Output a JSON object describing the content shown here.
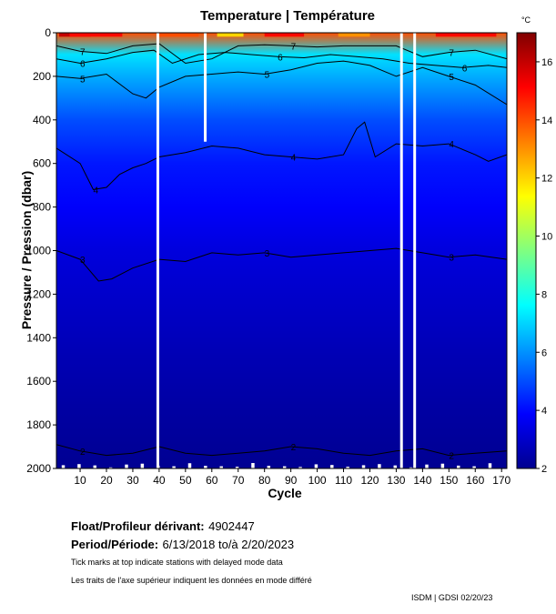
{
  "chart_data": {
    "type": "heatmap",
    "title": "Temperature | Température",
    "xlabel": "Cycle",
    "ylabel": "Pressure / Pression (dbar)",
    "xlim": [
      1,
      172
    ],
    "ylim": [
      2000,
      0
    ],
    "y_inverted": true,
    "xticks": [
      10,
      20,
      30,
      40,
      50,
      60,
      70,
      80,
      90,
      100,
      110,
      120,
      130,
      140,
      150,
      160,
      170
    ],
    "yticks": [
      0,
      200,
      400,
      600,
      800,
      1000,
      1200,
      1400,
      1600,
      1800,
      2000
    ],
    "colorbar": {
      "unit": "°C",
      "min": 2,
      "max": 17,
      "ticks": [
        2,
        4,
        6,
        8,
        10,
        12,
        14,
        16
      ],
      "colors": [
        "#00008f",
        "#0000ff",
        "#0080ff",
        "#00ffff",
        "#80ff80",
        "#ffff00",
        "#ff8000",
        "#ff0000",
        "#800000"
      ]
    },
    "temperature_profile": [
      {
        "pressure": 0,
        "temp": 14
      },
      {
        "pressure": 100,
        "temp": 7.2
      },
      {
        "pressure": 200,
        "temp": 6.4
      },
      {
        "pressure": 400,
        "temp": 5.0
      },
      {
        "pressure": 600,
        "temp": 4.2
      },
      {
        "pressure": 800,
        "temp": 3.8
      },
      {
        "pressure": 1000,
        "temp": 3.3
      },
      {
        "pressure": 1200,
        "temp": 3.0
      },
      {
        "pressure": 1500,
        "temp": 2.6
      },
      {
        "pressure": 1800,
        "temp": 2.25
      },
      {
        "pressure": 2000,
        "temp": 2.05
      }
    ],
    "contours": [
      {
        "label": "7",
        "depths": [
          [
            1,
            60
          ],
          [
            10,
            85
          ],
          [
            20,
            95
          ],
          [
            30,
            60
          ],
          [
            40,
            50
          ],
          [
            50,
            140
          ],
          [
            60,
            120
          ],
          [
            70,
            60
          ],
          [
            80,
            55
          ],
          [
            90,
            60
          ],
          [
            100,
            65
          ],
          [
            110,
            60
          ],
          [
            120,
            60
          ],
          [
            130,
            60
          ],
          [
            140,
            110
          ],
          [
            150,
            90
          ],
          [
            160,
            80
          ],
          [
            172,
            120
          ]
        ]
      },
      {
        "label": "6",
        "depths": [
          [
            1,
            120
          ],
          [
            10,
            140
          ],
          [
            20,
            120
          ],
          [
            30,
            90
          ],
          [
            38,
            80
          ],
          [
            45,
            140
          ],
          [
            55,
            100
          ],
          [
            65,
            90
          ],
          [
            75,
            100
          ],
          [
            85,
            110
          ],
          [
            95,
            115
          ],
          [
            105,
            100
          ],
          [
            115,
            110
          ],
          [
            125,
            120
          ],
          [
            135,
            140
          ],
          [
            145,
            150
          ],
          [
            155,
            160
          ],
          [
            165,
            150
          ],
          [
            172,
            160
          ]
        ]
      },
      {
        "label": "5",
        "depths": [
          [
            1,
            200
          ],
          [
            10,
            210
          ],
          [
            20,
            190
          ],
          [
            30,
            280
          ],
          [
            35,
            300
          ],
          [
            40,
            250
          ],
          [
            50,
            200
          ],
          [
            60,
            190
          ],
          [
            70,
            180
          ],
          [
            80,
            190
          ],
          [
            90,
            170
          ],
          [
            100,
            140
          ],
          [
            110,
            130
          ],
          [
            120,
            150
          ],
          [
            130,
            200
          ],
          [
            140,
            160
          ],
          [
            150,
            200
          ],
          [
            160,
            240
          ],
          [
            172,
            330
          ]
        ]
      },
      {
        "label": "4",
        "depths": [
          [
            1,
            530
          ],
          [
            10,
            600
          ],
          [
            15,
            720
          ],
          [
            20,
            710
          ],
          [
            25,
            650
          ],
          [
            30,
            620
          ],
          [
            35,
            600
          ],
          [
            40,
            570
          ],
          [
            50,
            550
          ],
          [
            60,
            520
          ],
          [
            70,
            530
          ],
          [
            80,
            560
          ],
          [
            90,
            570
          ],
          [
            100,
            580
          ],
          [
            110,
            560
          ],
          [
            115,
            440
          ],
          [
            118,
            410
          ],
          [
            122,
            570
          ],
          [
            130,
            510
          ],
          [
            140,
            520
          ],
          [
            150,
            510
          ],
          [
            160,
            560
          ],
          [
            165,
            590
          ],
          [
            172,
            560
          ]
        ]
      },
      {
        "label": "3",
        "depths": [
          [
            1,
            1000
          ],
          [
            10,
            1040
          ],
          [
            17,
            1140
          ],
          [
            22,
            1130
          ],
          [
            30,
            1080
          ],
          [
            40,
            1040
          ],
          [
            50,
            1050
          ],
          [
            60,
            1010
          ],
          [
            70,
            1020
          ],
          [
            80,
            1010
          ],
          [
            90,
            1030
          ],
          [
            100,
            1020
          ],
          [
            110,
            1010
          ],
          [
            120,
            1000
          ],
          [
            130,
            990
          ],
          [
            140,
            1010
          ],
          [
            150,
            1030
          ],
          [
            160,
            1020
          ],
          [
            172,
            1040
          ]
        ]
      },
      {
        "label": "2",
        "depths": [
          [
            1,
            1890
          ],
          [
            10,
            1920
          ],
          [
            20,
            1940
          ],
          [
            30,
            1930
          ],
          [
            40,
            1900
          ],
          [
            50,
            1930
          ],
          [
            60,
            1940
          ],
          [
            70,
            1930
          ],
          [
            80,
            1920
          ],
          [
            90,
            1900
          ],
          [
            100,
            1910
          ],
          [
            110,
            1930
          ],
          [
            120,
            1940
          ],
          [
            130,
            1920
          ],
          [
            140,
            1910
          ],
          [
            150,
            1940
          ],
          [
            160,
            1930
          ],
          [
            172,
            1920
          ]
        ]
      }
    ],
    "data_gaps": [
      {
        "cycle": 39.5,
        "from": 0,
        "to": 2000
      },
      {
        "cycle": 57.5,
        "from": 0,
        "to": 500
      },
      {
        "cycle": 132,
        "from": 0,
        "to": 2000
      },
      {
        "cycle": 137,
        "from": 0,
        "to": 2000
      }
    ],
    "delayed_mode_markers": "Tick marks at top of plot"
  },
  "footer": {
    "float_label": "Float/Profileur dérivant:",
    "float_id": "4902447",
    "period_label": "Period/Période:",
    "period_value": "6/13/2018  to/à  2/20/2023",
    "note_en": "Tick marks at top indicate stations with delayed mode data",
    "note_fr": "Les traits de l'axe supérieur indiquent les données en mode différé",
    "credit": "ISDM | GDSI  02/20/23"
  }
}
